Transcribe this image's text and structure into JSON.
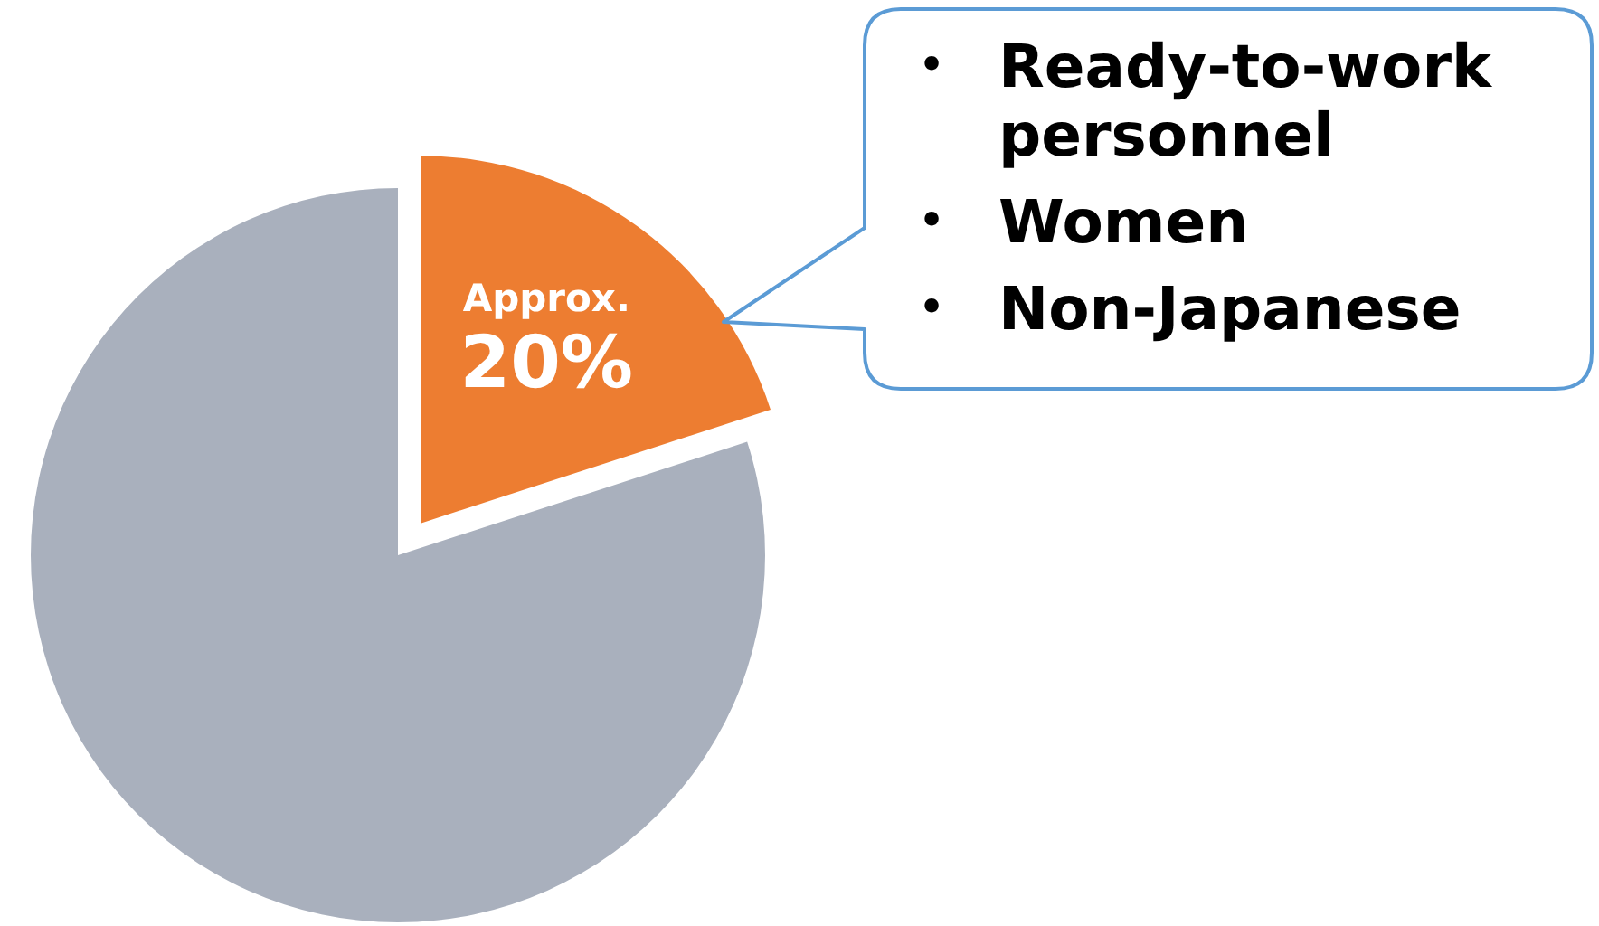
{
  "chart_data": {
    "type": "pie",
    "categories": [
      null,
      null
    ],
    "values": [
      20,
      80
    ],
    "colors": [
      "#ed7d31",
      "#a9b0bd"
    ],
    "value_labels": [
      "Approx. 20%",
      null
    ],
    "annotations": [
      "• Ready-to-work personnel",
      "• Women",
      "• Non-Japanese"
    ]
  }
}
